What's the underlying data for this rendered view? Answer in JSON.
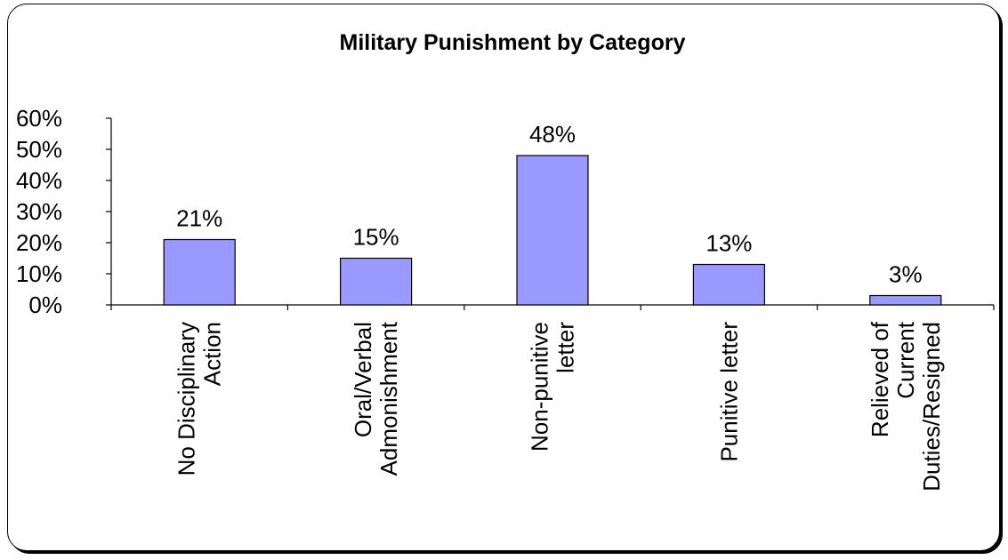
{
  "chart_data": {
    "type": "bar",
    "title": "Military Punishment by Category",
    "categories": [
      [
        "No Disciplinary",
        "Action"
      ],
      [
        "Oral/Verbal",
        "Admonishment"
      ],
      [
        "Non-punitive",
        "letter"
      ],
      [
        "Punitive letter"
      ],
      [
        "Relieved of",
        "Current",
        "Duties/Resigned"
      ]
    ],
    "values": [
      21,
      15,
      48,
      13,
      3
    ],
    "data_labels": [
      "21%",
      "15%",
      "48%",
      "13%",
      "3%"
    ],
    "y_ticks": [
      "0%",
      "10%",
      "20%",
      "30%",
      "40%",
      "50%",
      "60%"
    ],
    "ylim": [
      0,
      60
    ],
    "xlabel": "",
    "ylabel": "",
    "grid": false,
    "bar_color": "#9999ff"
  }
}
